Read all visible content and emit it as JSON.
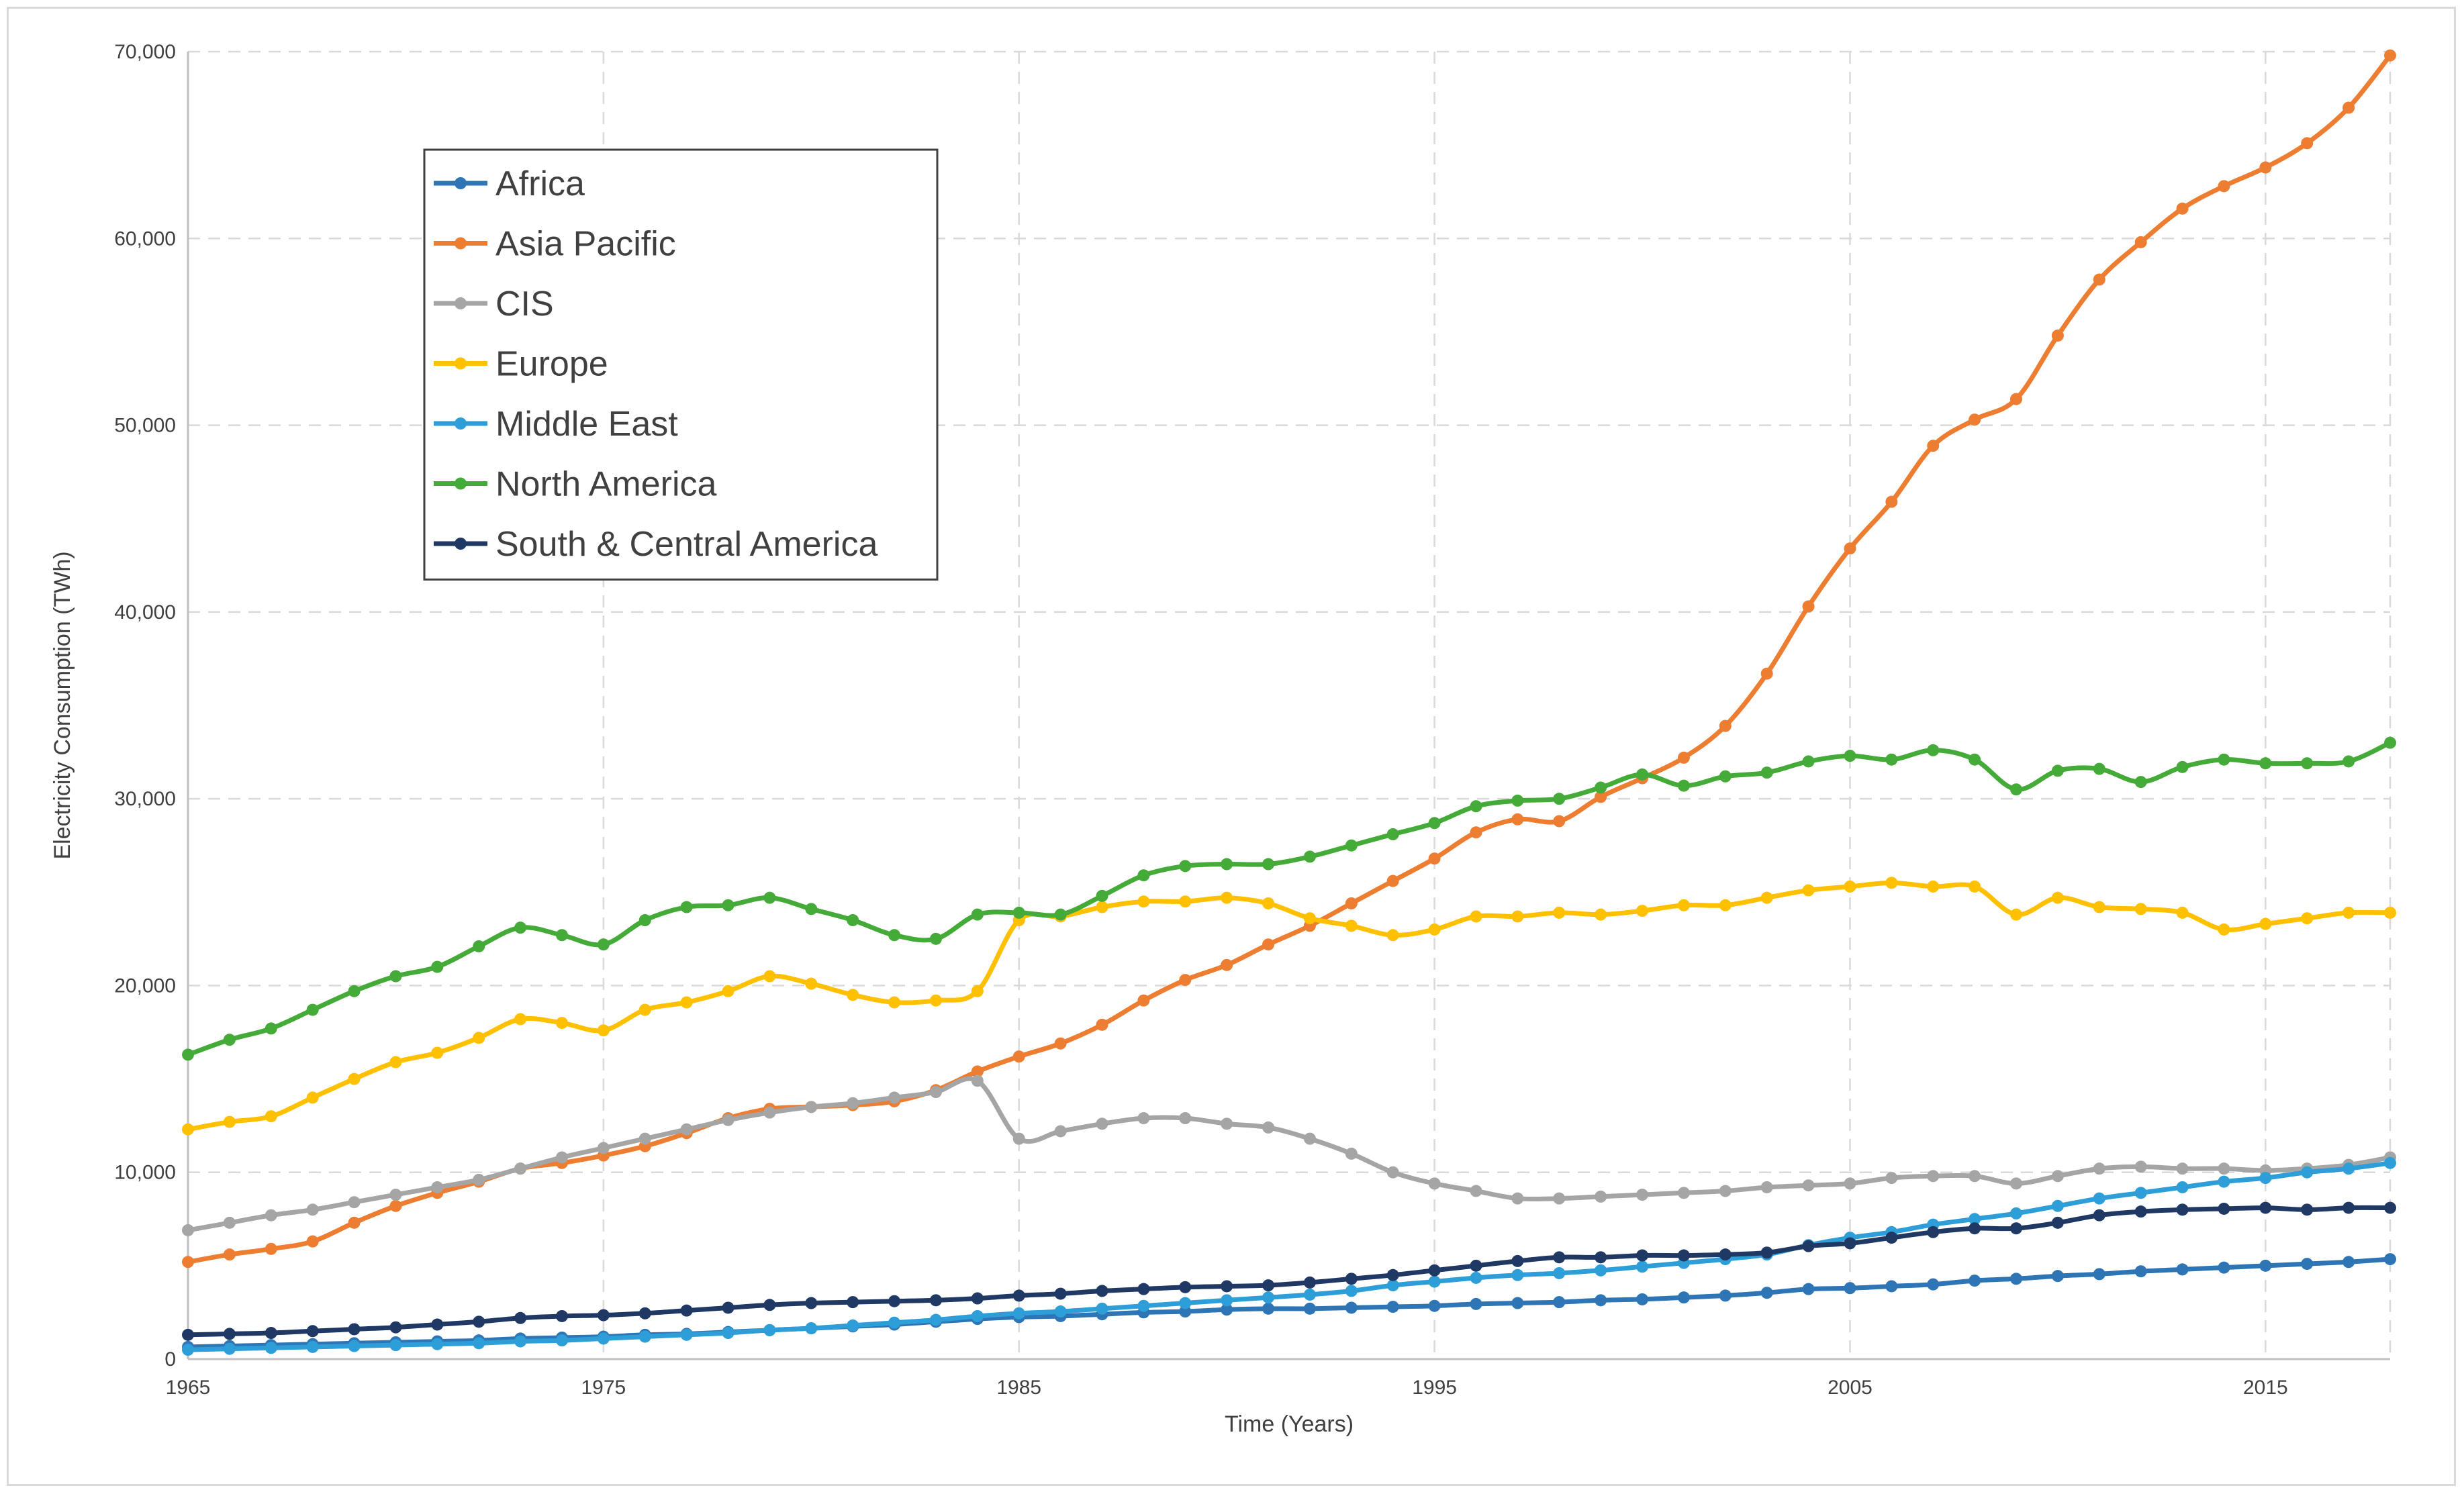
{
  "chart_data": {
    "type": "line",
    "title": "",
    "xlabel": "Time (Years)",
    "ylabel": "Electricity Consumption (TWh)",
    "xlim": [
      1965,
      2018
    ],
    "ylim": [
      0,
      70000
    ],
    "x_ticks": [
      "1965",
      "1975",
      "1985",
      "1995",
      "2005",
      "2015"
    ],
    "y_ticks": [
      "0",
      "10,000",
      "20,000",
      "30,000",
      "40,000",
      "50,000",
      "60,000",
      "70,000"
    ],
    "grid": true,
    "legend_position": "top-left",
    "x": [
      1965,
      1966,
      1967,
      1968,
      1969,
      1970,
      1971,
      1972,
      1973,
      1974,
      1975,
      1976,
      1977,
      1978,
      1979,
      1980,
      1981,
      1982,
      1983,
      1984,
      1985,
      1986,
      1987,
      1988,
      1989,
      1990,
      1991,
      1992,
      1993,
      1994,
      1995,
      1996,
      1997,
      1998,
      1999,
      2000,
      2001,
      2002,
      2003,
      2004,
      2005,
      2006,
      2007,
      2008,
      2009,
      2010,
      2011,
      2012,
      2013,
      2014,
      2015,
      2016,
      2017,
      2018
    ],
    "series": [
      {
        "name": "Africa",
        "color": "#2e75b6",
        "values": [
          650,
          700,
          750,
          800,
          850,
          900,
          950,
          1000,
          1100,
          1150,
          1200,
          1300,
          1350,
          1450,
          1550,
          1650,
          1750,
          1850,
          2000,
          2150,
          2250,
          2300,
          2400,
          2500,
          2550,
          2650,
          2700,
          2700,
          2750,
          2800,
          2850,
          2950,
          3000,
          3050,
          3150,
          3200,
          3300,
          3400,
          3550,
          3750,
          3800,
          3900,
          4000,
          4200,
          4300,
          4450,
          4550,
          4700,
          4800,
          4900,
          5000,
          5100,
          5200,
          5350
        ]
      },
      {
        "name": "Asia Pacific",
        "color": "#ed7d31",
        "values": [
          5200,
          5600,
          5900,
          6300,
          7300,
          8200,
          8900,
          9500,
          10200,
          10500,
          10900,
          11400,
          12100,
          12900,
          13400,
          13500,
          13600,
          13800,
          14400,
          15400,
          16200,
          16900,
          17900,
          19200,
          20300,
          21100,
          22200,
          23200,
          24400,
          25600,
          26800,
          28200,
          28900,
          28800,
          30100,
          31100,
          32200,
          33900,
          36700,
          40300,
          43400,
          45900,
          48900,
          50300,
          51400,
          54800,
          57800,
          59800,
          61600,
          62800,
          63800,
          65100,
          67000,
          69800
        ]
      },
      {
        "name": "CIS",
        "color": "#a5a5a5",
        "values": [
          6900,
          7300,
          7700,
          8000,
          8400,
          8800,
          9200,
          9600,
          10200,
          10800,
          11300,
          11800,
          12300,
          12800,
          13200,
          13500,
          13700,
          14000,
          14300,
          14900,
          11800,
          12200,
          12600,
          12900,
          12900,
          12600,
          12400,
          11800,
          11000,
          10000,
          9400,
          9000,
          8600,
          8600,
          8700,
          8800,
          8900,
          9000,
          9200,
          9300,
          9400,
          9700,
          9800,
          9800,
          9400,
          9800,
          10200,
          10300,
          10200,
          10200,
          10100,
          10200,
          10400,
          10800
        ]
      },
      {
        "name": "Europe",
        "color": "#ffc000",
        "values": [
          12300,
          12700,
          13000,
          14000,
          15000,
          15900,
          16400,
          17200,
          18200,
          18000,
          17600,
          18700,
          19100,
          19700,
          20500,
          20100,
          19500,
          19100,
          19200,
          19700,
          23500,
          23700,
          24200,
          24500,
          24500,
          24700,
          24400,
          23600,
          23200,
          22700,
          23000,
          23700,
          23700,
          23900,
          23800,
          24000,
          24300,
          24300,
          24700,
          25100,
          25300,
          25500,
          25300,
          25300,
          23800,
          24700,
          24200,
          24100,
          23900,
          23000,
          23300,
          23600,
          23900,
          23900
        ]
      },
      {
        "name": "Middle East",
        "color": "#2e9ed8",
        "values": [
          500,
          550,
          600,
          650,
          700,
          750,
          800,
          850,
          950,
          1000,
          1100,
          1200,
          1300,
          1400,
          1550,
          1650,
          1800,
          1950,
          2100,
          2300,
          2450,
          2550,
          2700,
          2850,
          3000,
          3150,
          3300,
          3450,
          3650,
          3950,
          4150,
          4350,
          4500,
          4600,
          4750,
          4950,
          5150,
          5350,
          5600,
          6100,
          6500,
          6800,
          7200,
          7500,
          7800,
          8200,
          8600,
          8900,
          9200,
          9500,
          9700,
          10000,
          10200,
          10500
        ]
      },
      {
        "name": "North America",
        "color": "#44aa38",
        "values": [
          16300,
          17100,
          17700,
          18700,
          19700,
          20500,
          21000,
          22100,
          23100,
          22700,
          22200,
          23500,
          24200,
          24300,
          24700,
          24100,
          23500,
          22700,
          22500,
          23800,
          23900,
          23800,
          24800,
          25900,
          26400,
          26500,
          26500,
          26900,
          27500,
          28100,
          28700,
          29600,
          29900,
          30000,
          30600,
          31300,
          30700,
          31200,
          31400,
          32000,
          32300,
          32100,
          32600,
          32100,
          30500,
          31500,
          31600,
          30900,
          31700,
          32100,
          31900,
          31900,
          32000,
          33000
        ]
      },
      {
        "name": "South & Central America",
        "color": "#1f3864",
        "values": [
          1300,
          1350,
          1400,
          1500,
          1600,
          1700,
          1850,
          2000,
          2200,
          2300,
          2350,
          2450,
          2600,
          2750,
          2900,
          3000,
          3050,
          3100,
          3150,
          3250,
          3400,
          3500,
          3650,
          3750,
          3850,
          3900,
          3950,
          4100,
          4300,
          4500,
          4750,
          5000,
          5250,
          5450,
          5450,
          5550,
          5550,
          5600,
          5700,
          6050,
          6200,
          6500,
          6800,
          7000,
          7000,
          7300,
          7700,
          7900,
          8000,
          8050,
          8100,
          8000,
          8100,
          8100
        ]
      }
    ]
  }
}
